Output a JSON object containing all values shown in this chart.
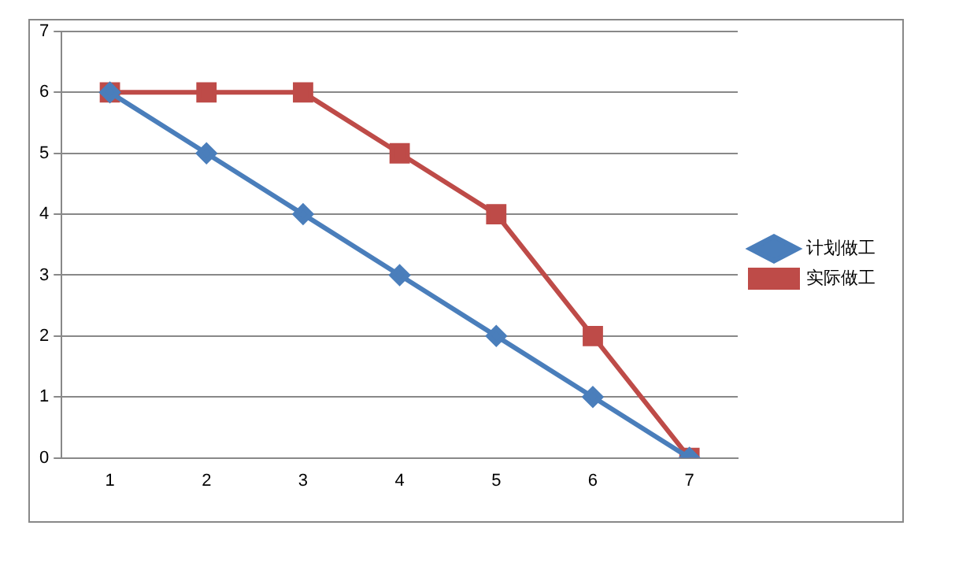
{
  "chart_data": {
    "type": "line",
    "categories": [
      "1",
      "2",
      "3",
      "4",
      "5",
      "6",
      "7"
    ],
    "series": [
      {
        "name": "计划做工",
        "color": "#4a7ebb",
        "values": [
          6,
          5,
          4,
          3,
          2,
          1,
          0
        ],
        "marker": "diamond"
      },
      {
        "name": "实际做工",
        "color": "#be4b48",
        "values": [
          6,
          6,
          6,
          5,
          4,
          2,
          0
        ],
        "marker": "square"
      }
    ],
    "ylim": [
      0,
      7
    ],
    "yticks": [
      0,
      1,
      2,
      3,
      4,
      5,
      6,
      7
    ],
    "grid": "y",
    "legend": "right",
    "line_style": "solid"
  }
}
